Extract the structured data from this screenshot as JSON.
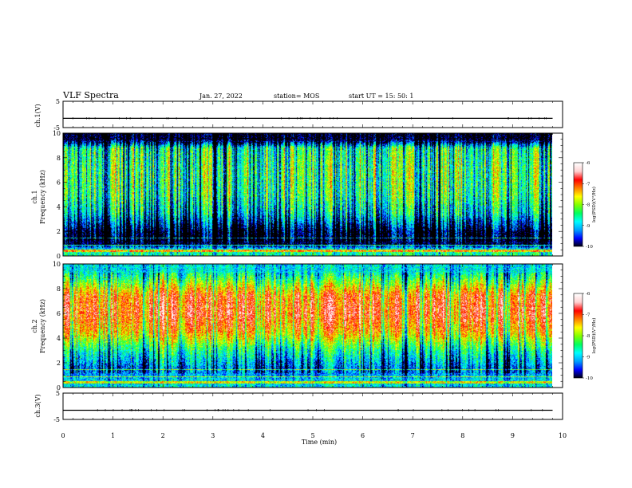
{
  "header": {
    "title": "VLF Spectra",
    "date": "Jan. 27, 2022",
    "station": "station= MOS",
    "start": "start  UT =   15: 50: 1"
  },
  "colors": {
    "colormap": [
      "#000000",
      "#0000ff",
      "#00a0ff",
      "#00ffff",
      "#00ff60",
      "#80ff00",
      "#ffff00",
      "#ff8000",
      "#ff0000",
      "#ffd0d0",
      "#ffffff"
    ]
  },
  "chart_data": [
    {
      "type": "line",
      "panel": "ch1-voltage",
      "ylabel": "ch.1(V)",
      "ylim": [
        -5,
        5
      ],
      "yticks": [
        "5",
        "-5"
      ],
      "x_range_min": [
        0,
        9.8
      ],
      "series": [
        {
          "values_V": [
            -1.5,
            -1.5,
            -1.5,
            -1.5,
            -1.5,
            -1.5,
            -1.5,
            -1.5,
            -1.5,
            -1.5,
            -1.5
          ]
        }
      ]
    },
    {
      "type": "heatmap",
      "panel": "ch1-spectrogram",
      "ylabel": "ch.1\nFrequency (kHz)",
      "ylim": [
        0,
        10
      ],
      "yticks": [
        "0",
        "2",
        "4",
        "6",
        "8",
        "10"
      ],
      "x_range_min": [
        0,
        9.8
      ],
      "colorbar": {
        "label": "log(PSD)(V²/Hz)",
        "range": [
          -10,
          -6
        ],
        "ticks": [
          "-6",
          "-7",
          "-8",
          "-9",
          "-10"
        ]
      },
      "band_profile_logPSD": [
        {
          "f_kHz": 0.5,
          "level": -8.3
        },
        {
          "f_kHz": 1.0,
          "level": -9.8
        },
        {
          "f_kHz": 2.0,
          "level": -9.6
        },
        {
          "f_kHz": 3.5,
          "level": -8.4
        },
        {
          "f_kHz": 5.0,
          "level": -7.9
        },
        {
          "f_kHz": 7.0,
          "level": -7.8
        },
        {
          "f_kHz": 8.8,
          "level": -8.0
        },
        {
          "f_kHz": 9.5,
          "level": -9.9
        }
      ]
    },
    {
      "type": "heatmap",
      "panel": "ch2-spectrogram",
      "ylabel": "ch.2\nFrequency (kHz)",
      "ylim": [
        0,
        10
      ],
      "yticks": [
        "0",
        "2",
        "4",
        "6",
        "8",
        "10"
      ],
      "x_range_min": [
        0,
        9.8
      ],
      "colorbar": {
        "label": "log(PSD)(V²/Hz)",
        "range": [
          -10,
          -6
        ],
        "ticks": [
          "-6",
          "-7",
          "-8",
          "-9",
          "-10"
        ]
      },
      "band_profile_logPSD": [
        {
          "f_kHz": 0.5,
          "level": -8.8
        },
        {
          "f_kHz": 1.5,
          "level": -9.3
        },
        {
          "f_kHz": 3.0,
          "level": -8.5
        },
        {
          "f_kHz": 4.5,
          "level": -7.3
        },
        {
          "f_kHz": 6.0,
          "level": -6.8
        },
        {
          "f_kHz": 7.5,
          "level": -7.0
        },
        {
          "f_kHz": 8.5,
          "level": -7.9
        },
        {
          "f_kHz": 9.5,
          "level": -8.8
        }
      ]
    },
    {
      "type": "line",
      "panel": "ch3-voltage",
      "ylabel": "ch.3(V)",
      "ylim": [
        -5,
        5
      ],
      "yticks": [
        "5",
        "-5"
      ],
      "x_range_min": [
        0,
        9.8
      ],
      "series": [
        {
          "values_V": [
            -1.5,
            -1.5,
            -1.5,
            -1.5,
            -1.5,
            -1.5,
            -1.5,
            -1.5,
            -1.5,
            -1.5,
            -1.5
          ]
        }
      ]
    }
  ],
  "xaxis": {
    "label": "Time (min)",
    "range": [
      0,
      10
    ],
    "ticks": [
      "0",
      "1",
      "2",
      "3",
      "4",
      "5",
      "6",
      "7",
      "8",
      "9",
      "10"
    ]
  }
}
